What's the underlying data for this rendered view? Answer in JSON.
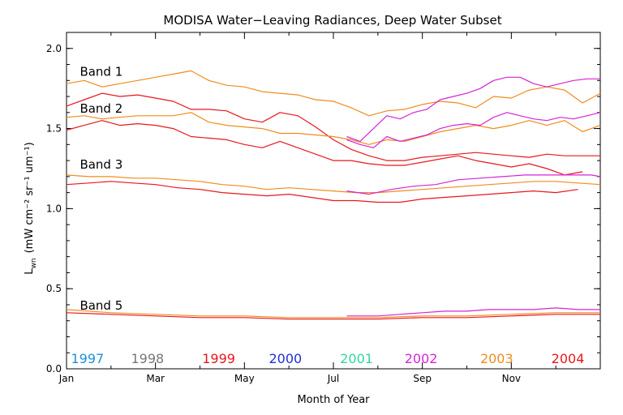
{
  "chart_data": {
    "type": "line",
    "title": "MODISA Water−Leaving Radiances, Deep Water Subset",
    "xlabel": "Month of Year",
    "ylabel_main": "L",
    "ylabel_sub": "wn",
    "ylabel_units": "(mW cm⁻² sr⁻¹ um⁻¹)",
    "xlim": [
      0,
      12
    ],
    "ylim": [
      0.0,
      2.1
    ],
    "x_ticks": [
      {
        "value": 0,
        "label": "Jan"
      },
      {
        "value": 2,
        "label": "Mar"
      },
      {
        "value": 4,
        "label": "May"
      },
      {
        "value": 6,
        "label": "Jul"
      },
      {
        "value": 8,
        "label": "Sep"
      },
      {
        "value": 10,
        "label": "Nov"
      }
    ],
    "y_ticks": [
      {
        "value": 0.0,
        "label": "0.0"
      },
      {
        "value": 0.5,
        "label": "0.5"
      },
      {
        "value": 1.0,
        "label": "1.0"
      },
      {
        "value": 1.5,
        "label": "1.5"
      },
      {
        "value": 2.0,
        "label": "2.0"
      }
    ],
    "band_labels": [
      {
        "text": "Band 1",
        "x": 0.3,
        "y": 1.83
      },
      {
        "text": "Band 2",
        "x": 0.3,
        "y": 1.6
      },
      {
        "text": "Band 3",
        "x": 0.3,
        "y": 1.25
      },
      {
        "text": "Band 5",
        "x": 0.3,
        "y": 0.37
      }
    ],
    "legend": [
      {
        "year": "1997",
        "color": "#1f8fd6",
        "x": 0.1
      },
      {
        "year": "1998",
        "color": "#777777",
        "x": 1.45
      },
      {
        "year": "1999",
        "color": "#e8181c",
        "x": 3.05
      },
      {
        "year": "2000",
        "color": "#1f2fd6",
        "x": 4.55
      },
      {
        "year": "2001",
        "color": "#2ed8a0",
        "x": 6.15
      },
      {
        "year": "2002",
        "color": "#d624d6",
        "x": 7.6
      },
      {
        "year": "2003",
        "color": "#f08c1e",
        "x": 9.3
      },
      {
        "year": "2004",
        "color": "#e8181c",
        "x": 10.9
      }
    ],
    "series": [
      {
        "year": "2003",
        "band": "Band 1",
        "color": "#f08c1e",
        "x": [
          0,
          0.4,
          0.8,
          1.2,
          1.6,
          2.0,
          2.4,
          2.8,
          3.2,
          3.6,
          4.0,
          4.4,
          4.8,
          5.2,
          5.6,
          6.0,
          6.4,
          6.8,
          7.2,
          7.6,
          8.0,
          8.4,
          8.8,
          9.2,
          9.6,
          10.0,
          10.4,
          10.8,
          11.2,
          11.6,
          12.0
        ],
        "y": [
          1.78,
          1.8,
          1.76,
          1.78,
          1.8,
          1.82,
          1.84,
          1.86,
          1.8,
          1.77,
          1.76,
          1.73,
          1.72,
          1.71,
          1.68,
          1.67,
          1.63,
          1.58,
          1.61,
          1.62,
          1.65,
          1.67,
          1.66,
          1.63,
          1.7,
          1.69,
          1.74,
          1.76,
          1.74,
          1.66,
          1.72
        ]
      },
      {
        "year": "2004",
        "band": "Band 1",
        "color": "#e8181c",
        "x": [
          0,
          0.4,
          0.8,
          1.2,
          1.6,
          2.0,
          2.4,
          2.8,
          3.2,
          3.6,
          4.0,
          4.4,
          4.8,
          5.2,
          5.6,
          6.0,
          6.4,
          6.8,
          7.2,
          7.6,
          8.0,
          8.4,
          8.8,
          9.2,
          9.6,
          10.0,
          10.4,
          10.8,
          11.2,
          11.6,
          12.0
        ],
        "y": [
          1.64,
          1.68,
          1.72,
          1.7,
          1.71,
          1.69,
          1.67,
          1.62,
          1.62,
          1.61,
          1.56,
          1.54,
          1.6,
          1.58,
          1.51,
          1.43,
          1.37,
          1.33,
          1.3,
          1.3,
          1.32,
          1.33,
          1.34,
          1.35,
          1.34,
          1.33,
          1.32,
          1.34,
          1.33,
          1.33,
          1.33
        ]
      },
      {
        "year": "2002",
        "band": "Band 1",
        "color": "#d624d6",
        "x": [
          6.3,
          6.6,
          6.9,
          7.2,
          7.5,
          7.8,
          8.1,
          8.4,
          8.7,
          9.0,
          9.3,
          9.6,
          9.9,
          10.2,
          10.5,
          10.8,
          11.1,
          11.4,
          11.7,
          12.0
        ],
        "y": [
          1.45,
          1.42,
          1.5,
          1.58,
          1.56,
          1.6,
          1.62,
          1.68,
          1.7,
          1.72,
          1.75,
          1.8,
          1.82,
          1.82,
          1.78,
          1.76,
          1.78,
          1.8,
          1.81,
          1.81
        ]
      },
      {
        "year": "2003",
        "band": "Band 2",
        "color": "#f08c1e",
        "x": [
          0,
          0.4,
          0.8,
          1.2,
          1.6,
          2.0,
          2.4,
          2.8,
          3.2,
          3.6,
          4.0,
          4.4,
          4.8,
          5.2,
          5.6,
          6.0,
          6.4,
          6.8,
          7.2,
          7.6,
          8.0,
          8.4,
          8.8,
          9.2,
          9.6,
          10.0,
          10.4,
          10.8,
          11.2,
          11.6,
          12.0
        ],
        "y": [
          1.57,
          1.58,
          1.56,
          1.57,
          1.58,
          1.58,
          1.58,
          1.6,
          1.54,
          1.52,
          1.51,
          1.5,
          1.47,
          1.47,
          1.46,
          1.45,
          1.43,
          1.4,
          1.43,
          1.42,
          1.45,
          1.48,
          1.5,
          1.52,
          1.5,
          1.52,
          1.55,
          1.52,
          1.55,
          1.48,
          1.52
        ]
      },
      {
        "year": "2004",
        "band": "Band 2",
        "color": "#e8181c",
        "x": [
          0,
          0.4,
          0.8,
          1.2,
          1.6,
          2.0,
          2.4,
          2.8,
          3.2,
          3.6,
          4.0,
          4.4,
          4.8,
          5.2,
          5.6,
          6.0,
          6.4,
          6.8,
          7.2,
          7.6,
          8.0,
          8.4,
          8.8,
          9.2,
          9.6,
          10.0,
          10.4,
          10.8,
          11.2,
          11.6
        ],
        "y": [
          1.49,
          1.52,
          1.55,
          1.52,
          1.53,
          1.52,
          1.5,
          1.45,
          1.44,
          1.43,
          1.4,
          1.38,
          1.42,
          1.38,
          1.34,
          1.3,
          1.3,
          1.28,
          1.27,
          1.27,
          1.29,
          1.31,
          1.33,
          1.3,
          1.28,
          1.26,
          1.28,
          1.25,
          1.21,
          1.23
        ]
      },
      {
        "year": "2002",
        "band": "Band 2",
        "color": "#d624d6",
        "x": [
          6.3,
          6.6,
          6.9,
          7.2,
          7.5,
          7.8,
          8.1,
          8.4,
          8.7,
          9.0,
          9.3,
          9.6,
          9.9,
          10.2,
          10.5,
          10.8,
          11.1,
          11.4,
          11.7,
          12.0
        ],
        "y": [
          1.43,
          1.4,
          1.38,
          1.45,
          1.42,
          1.44,
          1.46,
          1.5,
          1.52,
          1.53,
          1.52,
          1.57,
          1.6,
          1.58,
          1.56,
          1.55,
          1.57,
          1.56,
          1.58,
          1.6
        ]
      },
      {
        "year": "2003",
        "band": "Band 3",
        "color": "#f08c1e",
        "x": [
          0,
          0.5,
          1.0,
          1.5,
          2.0,
          2.5,
          3.0,
          3.5,
          4.0,
          4.5,
          5.0,
          5.5,
          6.0,
          6.5,
          7.0,
          7.5,
          8.0,
          8.5,
          9.0,
          9.5,
          10.0,
          10.5,
          11.0,
          11.5,
          12.0
        ],
        "y": [
          1.21,
          1.2,
          1.2,
          1.19,
          1.19,
          1.18,
          1.17,
          1.15,
          1.14,
          1.12,
          1.13,
          1.12,
          1.11,
          1.1,
          1.1,
          1.11,
          1.12,
          1.13,
          1.14,
          1.15,
          1.16,
          1.17,
          1.17,
          1.16,
          1.15
        ]
      },
      {
        "year": "2004",
        "band": "Band 3",
        "color": "#e8181c",
        "x": [
          0,
          0.5,
          1.0,
          1.5,
          2.0,
          2.5,
          3.0,
          3.5,
          4.0,
          4.5,
          5.0,
          5.5,
          6.0,
          6.5,
          7.0,
          7.5,
          8.0,
          8.5,
          9.0,
          9.5,
          10.0,
          10.5,
          11.0,
          11.5
        ],
        "y": [
          1.15,
          1.16,
          1.17,
          1.16,
          1.15,
          1.13,
          1.12,
          1.1,
          1.09,
          1.08,
          1.09,
          1.07,
          1.05,
          1.05,
          1.04,
          1.04,
          1.06,
          1.07,
          1.08,
          1.09,
          1.1,
          1.11,
          1.1,
          1.12
        ]
      },
      {
        "year": "2002",
        "band": "Band 3",
        "color": "#d624d6",
        "x": [
          6.3,
          6.8,
          7.3,
          7.8,
          8.3,
          8.8,
          9.3,
          9.8,
          10.3,
          10.8,
          11.3,
          11.8,
          12.0
        ],
        "y": [
          1.11,
          1.09,
          1.12,
          1.14,
          1.15,
          1.18,
          1.19,
          1.2,
          1.21,
          1.21,
          1.21,
          1.21,
          1.2
        ]
      },
      {
        "year": "2003",
        "band": "Band 5",
        "color": "#f08c1e",
        "x": [
          0,
          1,
          2,
          3,
          4,
          5,
          6,
          7,
          8,
          9,
          10,
          11,
          12
        ],
        "y": [
          0.37,
          0.35,
          0.34,
          0.33,
          0.33,
          0.32,
          0.32,
          0.32,
          0.33,
          0.33,
          0.34,
          0.35,
          0.35
        ]
      },
      {
        "year": "2004",
        "band": "Band 5",
        "color": "#e8181c",
        "x": [
          0,
          1,
          2,
          3,
          4,
          5,
          6,
          7,
          8,
          9,
          10,
          11,
          12
        ],
        "y": [
          0.35,
          0.34,
          0.33,
          0.32,
          0.32,
          0.31,
          0.31,
          0.31,
          0.32,
          0.32,
          0.33,
          0.34,
          0.34
        ]
      },
      {
        "year": "2002",
        "band": "Band 5",
        "color": "#d624d6",
        "x": [
          6.3,
          7,
          7.5,
          8,
          8.5,
          9,
          9.5,
          10,
          10.5,
          11,
          11.5,
          12
        ],
        "y": [
          0.33,
          0.33,
          0.34,
          0.35,
          0.36,
          0.36,
          0.37,
          0.37,
          0.37,
          0.38,
          0.37,
          0.37
        ]
      }
    ]
  }
}
